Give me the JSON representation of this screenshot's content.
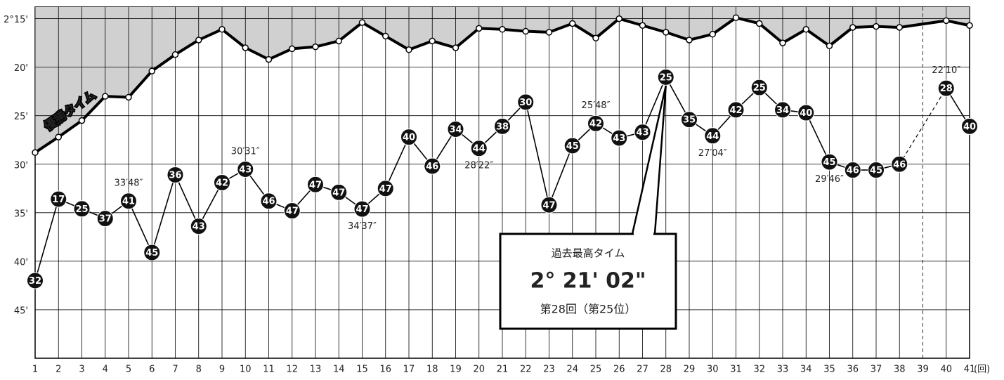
{
  "chart_data": {
    "type": "line",
    "x": [
      1,
      2,
      3,
      4,
      5,
      6,
      7,
      8,
      9,
      10,
      11,
      12,
      13,
      14,
      15,
      16,
      17,
      18,
      19,
      20,
      21,
      22,
      23,
      24,
      25,
      26,
      27,
      28,
      29,
      30,
      31,
      32,
      33,
      34,
      35,
      36,
      37,
      38,
      39,
      40,
      41
    ],
    "xlim": [
      1,
      41
    ],
    "xlabel": "(回)",
    "ylim": [
      50,
      13.8
    ],
    "yticks": [
      {
        "value": 15,
        "label": "2°15'"
      },
      {
        "value": 20,
        "label": "20'"
      },
      {
        "value": 25,
        "label": "25'"
      },
      {
        "value": 30,
        "label": "30'"
      },
      {
        "value": 35,
        "label": "35'"
      },
      {
        "value": 40,
        "label": "40'"
      },
      {
        "value": 45,
        "label": "45'"
      }
    ],
    "grid": true,
    "series": [
      {
        "name": "優勝タイム",
        "color": "#000000",
        "fill": "#d0d0d0",
        "values": [
          28.8,
          27.2,
          25.5,
          23.0,
          23.1,
          20.4,
          18.7,
          17.2,
          16.1,
          18.0,
          19.2,
          18.1,
          17.9,
          17.3,
          15.4,
          16.8,
          18.2,
          17.3,
          18.0,
          16.0,
          16.1,
          16.3,
          16.4,
          15.5,
          17.0,
          15.0,
          15.7,
          16.4,
          17.2,
          16.6,
          14.9,
          15.5,
          17.5,
          16.1,
          17.8,
          15.9,
          15.8,
          15.9,
          null,
          15.2,
          15.7
        ]
      },
      {
        "color": "#000000",
        "values": [
          42.0,
          33.6,
          34.6,
          35.6,
          33.8,
          39.1,
          31.1,
          36.4,
          31.9,
          30.52,
          33.8,
          34.8,
          32.1,
          32.9,
          34.62,
          32.5,
          27.2,
          30.2,
          26.4,
          28.37,
          26.1,
          23.6,
          34.2,
          28.1,
          25.8,
          27.3,
          26.7,
          21.03,
          25.4,
          27.07,
          24.4,
          22.1,
          24.4,
          24.7,
          29.77,
          30.6,
          30.6,
          30.0,
          null,
          22.17,
          26.1
        ],
        "ranks": [
          32,
          17,
          25,
          37,
          41,
          45,
          36,
          43,
          42,
          43,
          46,
          47,
          47,
          47,
          47,
          47,
          40,
          46,
          34,
          44,
          38,
          30,
          47,
          45,
          42,
          43,
          43,
          25,
          35,
          44,
          42,
          25,
          34,
          40,
          45,
          46,
          45,
          46,
          null,
          28,
          40
        ],
        "value_labels": [
          null,
          null,
          null,
          null,
          "33′48″",
          null,
          null,
          null,
          null,
          "30′31″",
          null,
          null,
          null,
          null,
          "34′37″",
          null,
          null,
          null,
          null,
          "28′22″",
          null,
          null,
          null,
          null,
          "25′48″",
          null,
          null,
          null,
          null,
          "27′04″",
          null,
          null,
          null,
          null,
          "29′46″",
          null,
          null,
          null,
          null,
          "22′10″",
          null
        ]
      }
    ],
    "callout": {
      "title": "過去最高タイム",
      "value": "2° 21' 02\"",
      "note": "第28回（第25位）"
    }
  }
}
